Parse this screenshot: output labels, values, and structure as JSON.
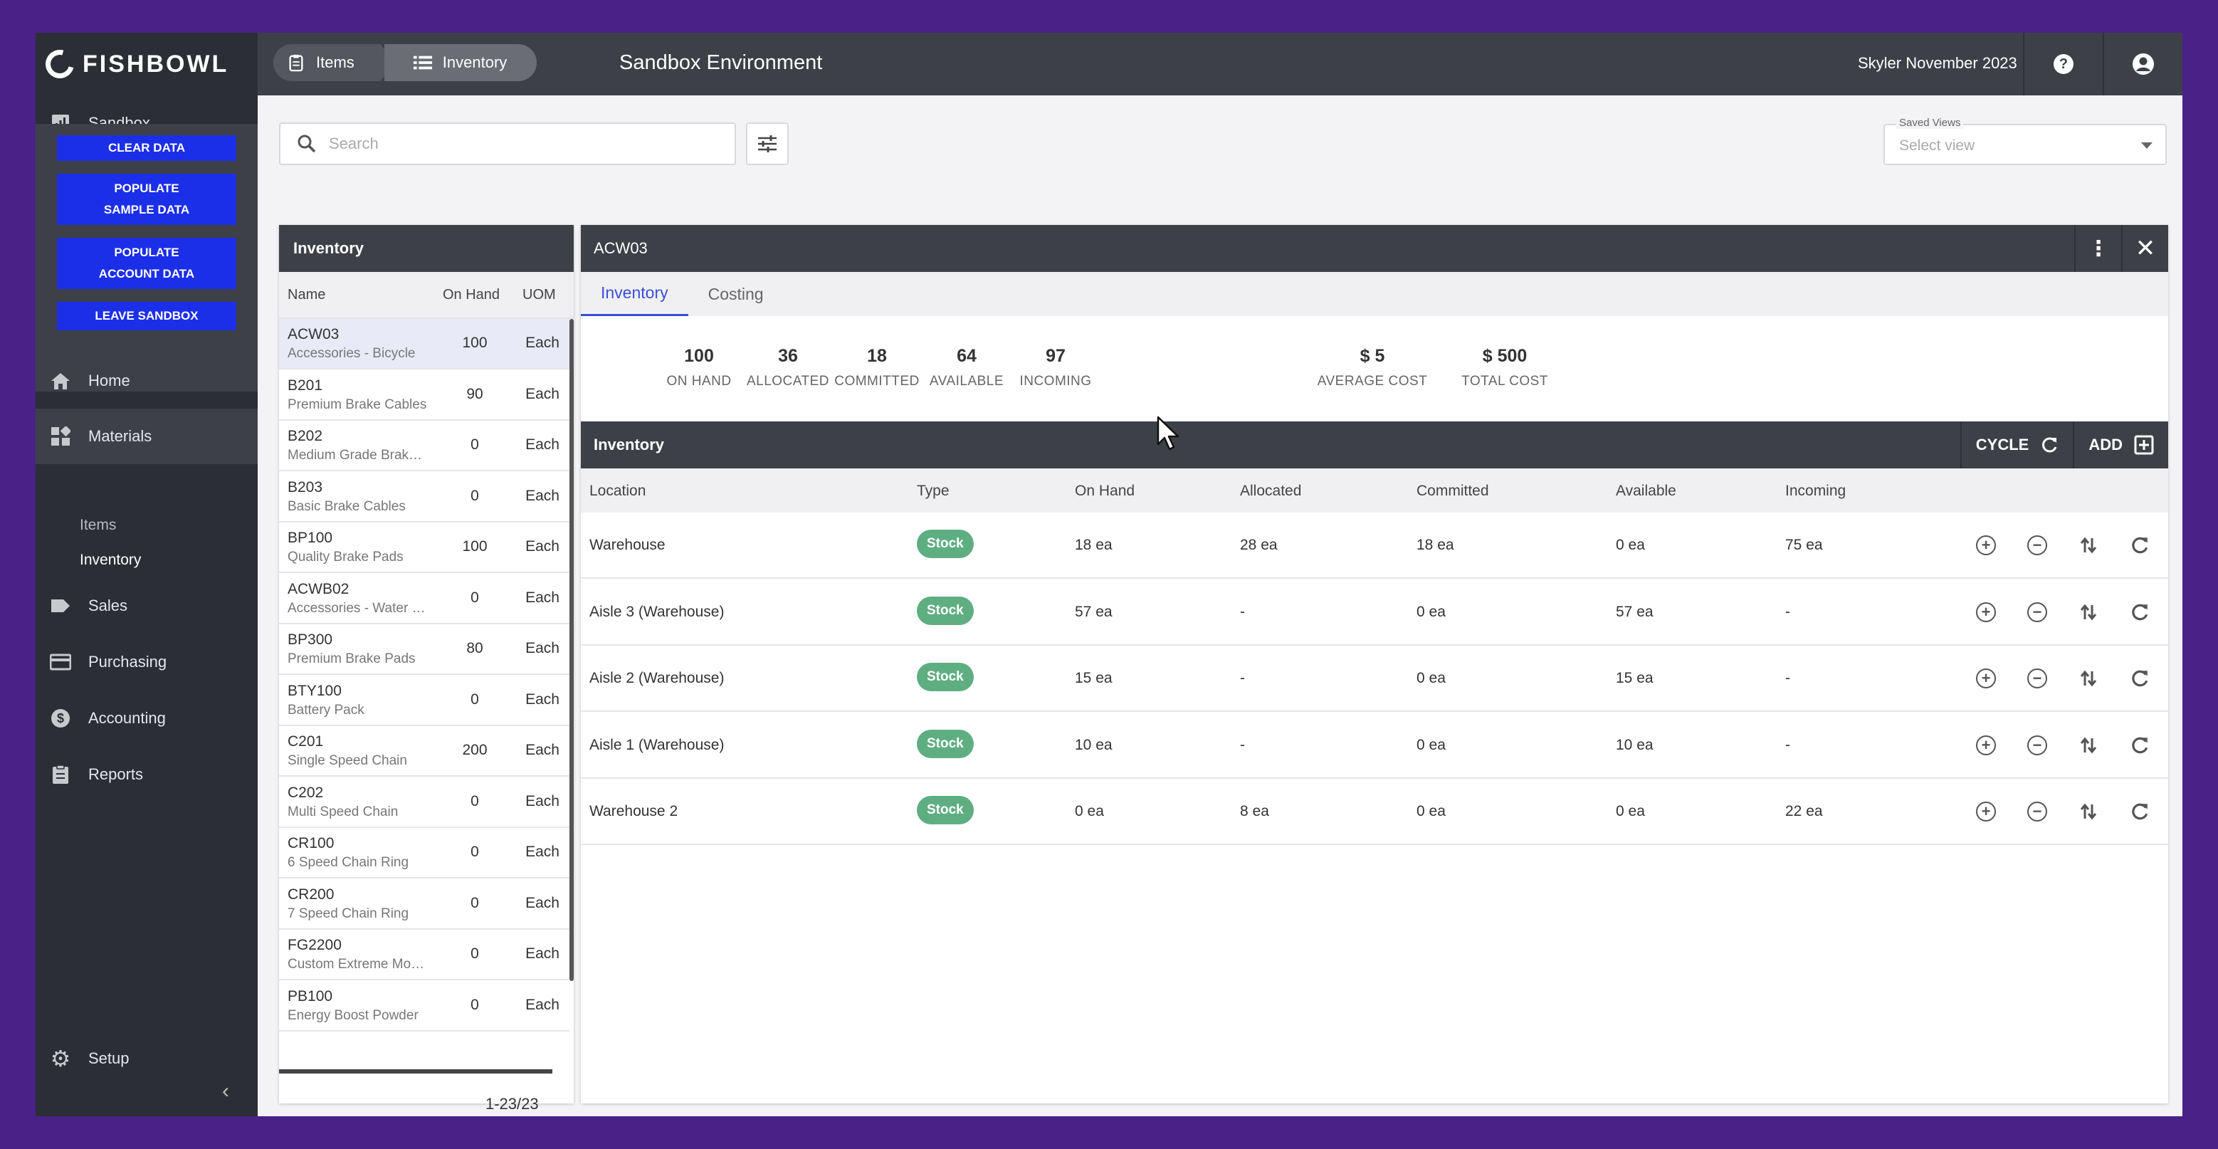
{
  "app": {
    "logo_text": "FISHBOWL",
    "breadcrumb": [
      {
        "label": "Items",
        "icon": "clipboard-icon"
      },
      {
        "label": "Inventory",
        "icon": "list-icon"
      }
    ],
    "env_title": "Sandbox Environment",
    "user_name": "Skyler November 2023",
    "help_icon": "help-icon",
    "account_icon": "account-icon"
  },
  "sidebar": {
    "sandbox": {
      "label": "Sandbox",
      "icon": "chart-icon"
    },
    "sandbox_buttons": {
      "clear": "CLEAR DATA",
      "populate_sample_1": "POPULATE",
      "populate_sample_2": "SAMPLE DATA",
      "populate_account_1": "POPULATE",
      "populate_account_2": "ACCOUNT DATA",
      "leave": "LEAVE SANDBOX"
    },
    "home": "Home",
    "materials": "Materials",
    "materials_sub": {
      "items": "Items",
      "inventory": "Inventory"
    },
    "sales": "Sales",
    "purchasing": "Purchasing",
    "accounting": "Accounting",
    "reports": "Reports",
    "setup": "Setup"
  },
  "search": {
    "placeholder": "Search"
  },
  "saved_views": {
    "label": "Saved Views",
    "placeholder": "Select view"
  },
  "list": {
    "title": "Inventory",
    "columns": {
      "name": "Name",
      "on_hand": "On Hand",
      "uom": "UOM"
    },
    "rows": [
      {
        "name": "ACW03",
        "desc": "Accessories - Bicycle",
        "qty": "100",
        "uom": "Each",
        "selected": true
      },
      {
        "name": "B201",
        "desc": "Premium Brake Cables",
        "qty": "90",
        "uom": "Each"
      },
      {
        "name": "B202",
        "desc": "Medium Grade Brake Cables",
        "qty": "0",
        "uom": "Each"
      },
      {
        "name": "B203",
        "desc": "Basic Brake Cables",
        "qty": "0",
        "uom": "Each"
      },
      {
        "name": "BP100",
        "desc": "Quality Brake Pads",
        "qty": "100",
        "uom": "Each"
      },
      {
        "name": "ACWB02",
        "desc": "Accessories - Water Bottle",
        "qty": "0",
        "uom": "Each"
      },
      {
        "name": "BP300",
        "desc": "Premium Brake Pads",
        "qty": "80",
        "uom": "Each"
      },
      {
        "name": "BTY100",
        "desc": "Battery Pack",
        "qty": "0",
        "uom": "Each"
      },
      {
        "name": "C201",
        "desc": "Single Speed Chain",
        "qty": "200",
        "uom": "Each"
      },
      {
        "name": "C202",
        "desc": "Multi Speed Chain",
        "qty": "0",
        "uom": "Each"
      },
      {
        "name": "CR100",
        "desc": "6 Speed Chain Ring",
        "qty": "0",
        "uom": "Each"
      },
      {
        "name": "CR200",
        "desc": "7 Speed Chain Ring",
        "qty": "0",
        "uom": "Each"
      },
      {
        "name": "FG2200",
        "desc": "Custom Extreme Mountain Bike",
        "qty": "0",
        "uom": "Each"
      },
      {
        "name": "PB100",
        "desc": "Energy Boost Powder",
        "qty": "0",
        "uom": "Each"
      }
    ],
    "pager": "1-23/23"
  },
  "detail": {
    "title": "ACW03",
    "tabs": [
      "Inventory",
      "Costing"
    ],
    "stats": [
      {
        "value": "100",
        "label": "ON HAND"
      },
      {
        "value": "36",
        "label": "ALLOCATED"
      },
      {
        "value": "18",
        "label": "COMMITTED"
      },
      {
        "value": "64",
        "label": "AVAILABLE"
      },
      {
        "value": "97",
        "label": "INCOMING"
      },
      {
        "value": "$ 5",
        "label": "AVERAGE COST"
      },
      {
        "value": "$ 500",
        "label": "TOTAL COST"
      }
    ],
    "section_title": "Inventory",
    "cycle_label": "CYCLE",
    "add_label": "ADD",
    "columns": [
      "Location",
      "Type",
      "On Hand",
      "Allocated",
      "Committed",
      "Available",
      "Incoming"
    ],
    "rows": [
      {
        "location": "Warehouse",
        "type": "Stock",
        "on_hand": "18 ea",
        "allocated": "28 ea",
        "committed": "18 ea",
        "available": "0 ea",
        "incoming": "75 ea"
      },
      {
        "location": "Aisle 3 (Warehouse)",
        "type": "Stock",
        "on_hand": "57 ea",
        "allocated": "-",
        "committed": "0 ea",
        "available": "57 ea",
        "incoming": "-"
      },
      {
        "location": "Aisle 2 (Warehouse)",
        "type": "Stock",
        "on_hand": "15 ea",
        "allocated": "-",
        "committed": "0 ea",
        "available": "15 ea",
        "incoming": "-"
      },
      {
        "location": "Aisle 1 (Warehouse)",
        "type": "Stock",
        "on_hand": "10 ea",
        "allocated": "-",
        "committed": "0 ea",
        "available": "10 ea",
        "incoming": "-"
      },
      {
        "location": "Warehouse 2",
        "type": "Stock",
        "on_hand": "0 ea",
        "allocated": "8 ea",
        "committed": "0 ea",
        "available": "0 ea",
        "incoming": "22 ea"
      }
    ]
  }
}
